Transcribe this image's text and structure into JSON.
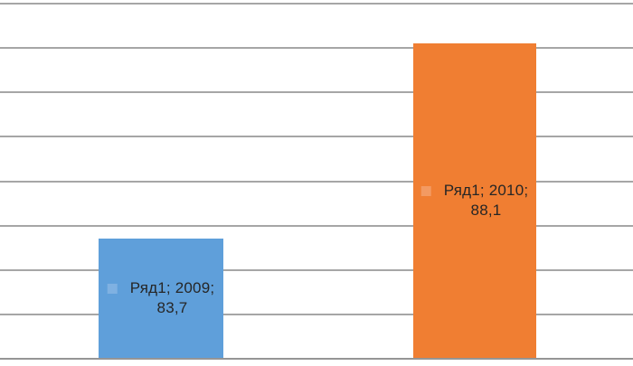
{
  "chart_data": {
    "type": "bar",
    "title": "",
    "xlabel": "",
    "ylabel": "",
    "categories": [
      "2009",
      "2010"
    ],
    "series": [
      {
        "name": "Ряд1",
        "values": [
          83.7,
          88.1
        ]
      }
    ],
    "ylim": [
      81,
      89
    ],
    "ytick_step": 1,
    "grid": true,
    "axis_tick_labels_visible": false,
    "legend_position": "none",
    "data_labels_position": "center",
    "data_labels_show_legend_key": true,
    "points": [
      {
        "category": "2009",
        "value": 83.7,
        "fill": "#5F9FDA",
        "key_fill": "#7FB1E2",
        "label_line1": "Ряд1; 2009;",
        "label_line2": "83,7"
      },
      {
        "category": "2010",
        "value": 88.1,
        "fill": "#F07E32",
        "key_fill": "#F39A62",
        "label_line1": "Ряд1; 2010;",
        "label_line2": "88,1"
      }
    ],
    "colors": {
      "gridline": "#A6A6A6",
      "axis_line": "#959595",
      "label_text": "#262626",
      "background": "#FFFFFF"
    }
  }
}
